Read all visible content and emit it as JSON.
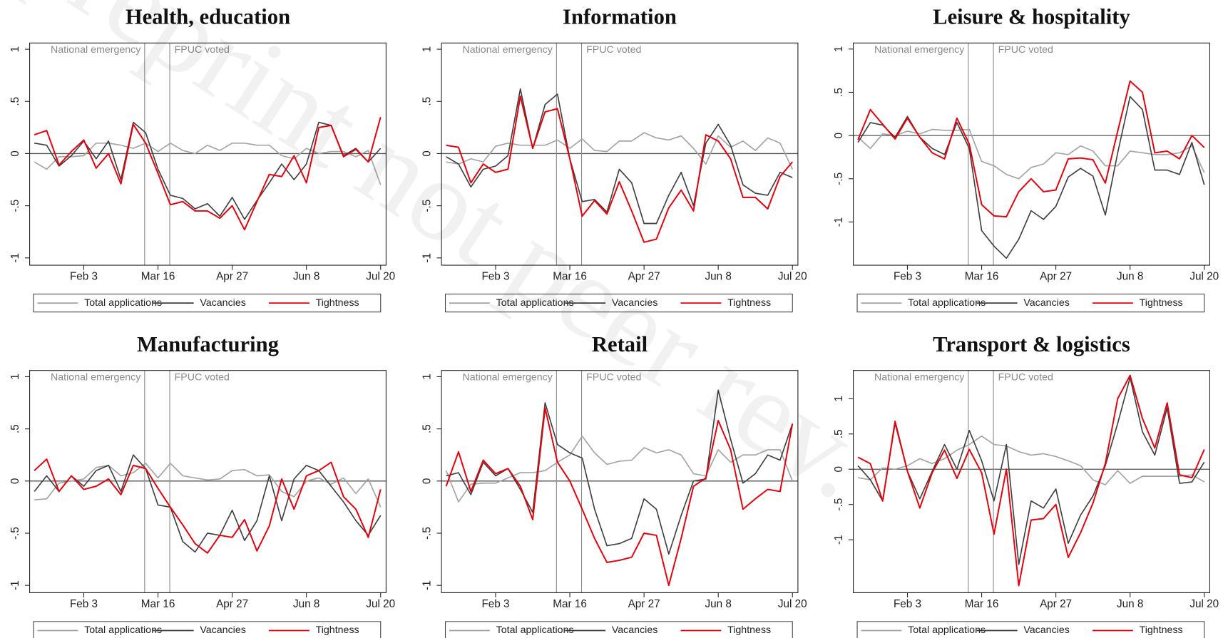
{
  "watermark": "preprint not peer rev.",
  "chart_data": [
    {
      "type": "line",
      "title": "Health, education",
      "categories": [
        null,
        null,
        null,
        null,
        "Feb 3",
        null,
        null,
        null,
        null,
        null,
        "Mar 16",
        null,
        null,
        null,
        null,
        null,
        "Apr 27",
        null,
        null,
        null,
        null,
        null,
        "Jun 8",
        null,
        null,
        null,
        null,
        null,
        "Jul 20"
      ],
      "series": [
        {
          "name": "Total applications",
          "color": "#a3a3a3",
          "values": [
            -0.08,
            -0.15,
            -0.03,
            -0.03,
            -0.02,
            0.1,
            0.1,
            0.08,
            0.05,
            0.1,
            0.02,
            0.1,
            0.03,
            0,
            0.08,
            0.03,
            0.1,
            0.1,
            0.08,
            0.08,
            -0.02,
            -0.05,
            0.05,
            0,
            0.02,
            0.02,
            -0.03,
            0.03,
            -0.3
          ]
        },
        {
          "name": "Vacancies",
          "color": "#3f3f3f",
          "values": [
            0.1,
            0.08,
            -0.12,
            -0.02,
            0.12,
            -0.05,
            0.12,
            -0.25,
            0.3,
            0.2,
            -0.15,
            -0.4,
            -0.43,
            -0.53,
            -0.48,
            -0.6,
            -0.42,
            -0.63,
            -0.45,
            -0.28,
            -0.1,
            -0.25,
            -0.1,
            0.3,
            0.27,
            -0.02,
            0.05,
            -0.08,
            0.05
          ]
        },
        {
          "name": "Tightness",
          "color": "#e8000b",
          "values": [
            0.18,
            0.22,
            -0.11,
            0.02,
            0.13,
            -0.14,
            0,
            -0.29,
            0.28,
            0.1,
            -0.19,
            -0.49,
            -0.46,
            -0.55,
            -0.55,
            -0.62,
            -0.5,
            -0.73,
            -0.46,
            -0.2,
            -0.22,
            -0.02,
            -0.28,
            0.25,
            0.27,
            -0.03,
            0.04,
            -0.08,
            0.35
          ]
        }
      ],
      "ylim": [
        -1.07,
        1.06
      ],
      "yticks": [
        -1,
        {
          "value": -0.5,
          "label": "-.5"
        },
        0,
        {
          "value": 0.5,
          "label": ".5"
        },
        1
      ],
      "hline": 0,
      "annotations": [
        {
          "label": "National emergency",
          "x": 8.92,
          "side": "left"
        },
        {
          "label": "FPUC voted",
          "x": 10.95,
          "side": "right"
        }
      ],
      "legend": "bottom"
    },
    {
      "type": "line",
      "title": "Information",
      "categories": [
        null,
        null,
        null,
        null,
        "Feb 3",
        null,
        null,
        null,
        null,
        null,
        "Mar 16",
        null,
        null,
        null,
        null,
        null,
        "Apr 27",
        null,
        null,
        null,
        null,
        null,
        "Jun 8",
        null,
        null,
        null,
        null,
        null,
        "Jul 20"
      ],
      "series": [
        {
          "name": "Total applications",
          "color": "#a3a3a3",
          "values": [
            -0.08,
            -0.1,
            -0.05,
            -0.08,
            0.07,
            0.1,
            0.08,
            0.08,
            0.08,
            0.13,
            0.05,
            0.14,
            0.03,
            0.02,
            0.12,
            0.12,
            0.2,
            0.15,
            0.13,
            0.17,
            0.05,
            -0.1,
            0.17,
            0.06,
            0.12,
            0.03,
            0.15,
            0.1,
            -0.15
          ]
        },
        {
          "name": "Vacancies",
          "color": "#3f3f3f",
          "values": [
            -0.03,
            -0.1,
            -0.32,
            -0.15,
            -0.12,
            -0.02,
            0.62,
            0.05,
            0.47,
            0.57,
            -0.05,
            -0.46,
            -0.44,
            -0.56,
            -0.15,
            -0.28,
            -0.67,
            -0.67,
            -0.4,
            -0.18,
            -0.5,
            0.1,
            0.28,
            0.08,
            -0.3,
            -0.38,
            -0.4,
            -0.18,
            -0.23
          ]
        },
        {
          "name": "Tightness",
          "color": "#e8000b",
          "values": [
            0.08,
            0.06,
            -0.28,
            -0.1,
            -0.18,
            -0.15,
            0.55,
            0.05,
            0.4,
            0.43,
            -0.05,
            -0.6,
            -0.45,
            -0.58,
            -0.27,
            -0.55,
            -0.85,
            -0.82,
            -0.52,
            -0.35,
            -0.55,
            0.18,
            0.12,
            -0.05,
            -0.42,
            -0.42,
            -0.53,
            -0.22,
            -0.08
          ]
        }
      ],
      "ylim": [
        -1.07,
        1.06
      ],
      "yticks": [
        -1,
        {
          "value": -0.5,
          "label": "-.5"
        },
        0,
        {
          "value": 0.5,
          "label": ".5"
        },
        1
      ],
      "hline": 0,
      "annotations": [
        {
          "label": "National emergency",
          "x": 8.92,
          "side": "left"
        },
        {
          "label": "FPUC voted",
          "x": 10.95,
          "side": "right"
        }
      ],
      "legend": "bottom"
    },
    {
      "type": "line",
      "title": "Leisure & hospitality",
      "categories": [
        null,
        null,
        null,
        null,
        "Feb 3",
        null,
        null,
        null,
        null,
        null,
        "Mar 16",
        null,
        null,
        null,
        null,
        null,
        "Apr 27",
        null,
        null,
        null,
        null,
        null,
        "Jun 8",
        null,
        null,
        null,
        null,
        null,
        "Jul 20"
      ],
      "series": [
        {
          "name": "Total applications",
          "color": "#a3a3a3",
          "values": [
            -0.02,
            -0.15,
            0.02,
            0,
            0.05,
            0.02,
            0.07,
            0.06,
            0.06,
            0.07,
            -0.3,
            -0.35,
            -0.45,
            -0.5,
            -0.37,
            -0.33,
            -0.2,
            -0.22,
            -0.12,
            -0.18,
            -0.35,
            -0.35,
            -0.18,
            -0.2,
            -0.22,
            -0.22,
            -0.2,
            -0.12,
            -0.43
          ]
        },
        {
          "name": "Vacancies",
          "color": "#3f3f3f",
          "values": [
            -0.08,
            0.15,
            0.12,
            -0.02,
            0.22,
            -0.02,
            -0.15,
            -0.22,
            0.15,
            -0.15,
            -1.1,
            -1.28,
            -1.42,
            -1.2,
            -0.87,
            -0.97,
            -0.82,
            -0.48,
            -0.38,
            -0.47,
            -0.92,
            -0.2,
            0.45,
            0.3,
            -0.4,
            -0.4,
            -0.45,
            -0.08,
            -0.57
          ]
        },
        {
          "name": "Tightness",
          "color": "#e8000b",
          "values": [
            -0.05,
            0.3,
            0.13,
            -0.04,
            0.2,
            -0.02,
            -0.2,
            -0.27,
            0.2,
            -0.1,
            -0.8,
            -0.93,
            -0.94,
            -0.65,
            -0.5,
            -0.65,
            -0.63,
            -0.27,
            -0.26,
            -0.28,
            -0.55,
            0.05,
            0.63,
            0.5,
            -0.2,
            -0.18,
            -0.27,
            0,
            -0.14
          ]
        }
      ],
      "ylim": [
        -1.5,
        1.07
      ],
      "yticks": [
        -1,
        {
          "value": -0.5,
          "label": "-.5"
        },
        0,
        {
          "value": 0.5,
          "label": ".5"
        },
        1
      ],
      "hline": 0,
      "annotations": [
        {
          "label": "National emergency",
          "x": 8.92,
          "side": "left"
        },
        {
          "label": "FPUC voted",
          "x": 10.95,
          "side": "right"
        }
      ],
      "legend": "bottom"
    },
    {
      "type": "line",
      "title": "Manufacturing",
      "categories": [
        null,
        null,
        null,
        null,
        "Feb 3",
        null,
        null,
        null,
        null,
        null,
        "Mar 16",
        null,
        null,
        null,
        null,
        null,
        "Apr 27",
        null,
        null,
        null,
        null,
        null,
        "Jun 8",
        null,
        null,
        null,
        null,
        null,
        "Jul 20"
      ],
      "series": [
        {
          "name": "Total applications",
          "color": "#a3a3a3",
          "values": [
            -0.18,
            -0.17,
            -0.02,
            0,
            0.02,
            0.13,
            0.15,
            0.05,
            0.08,
            0.17,
            0.03,
            0.17,
            0.05,
            0.03,
            0.01,
            0.02,
            0.1,
            0.11,
            0.05,
            0.06,
            -0.1,
            -0.15,
            0,
            0.03,
            -0.03,
            0.03,
            -0.12,
            0.02,
            -0.25
          ]
        },
        {
          "name": "Vacancies",
          "color": "#3f3f3f",
          "values": [
            -0.1,
            0.05,
            -0.1,
            0.05,
            -0.05,
            0.1,
            0.15,
            -0.1,
            0.25,
            0.12,
            -0.23,
            -0.25,
            -0.58,
            -0.68,
            -0.5,
            -0.52,
            -0.28,
            -0.57,
            -0.38,
            0.05,
            -0.38,
            0.02,
            0.15,
            0.1,
            -0.05,
            -0.2,
            -0.38,
            -0.52,
            -0.33
          ]
        },
        {
          "name": "Tightness",
          "color": "#e8000b",
          "values": [
            0.1,
            0.21,
            -0.1,
            0.05,
            -0.08,
            -0.05,
            0.02,
            -0.13,
            0.15,
            0.12,
            -0.07,
            -0.25,
            -0.42,
            -0.6,
            -0.69,
            -0.52,
            -0.54,
            -0.37,
            -0.67,
            -0.43,
            0.02,
            -0.27,
            0.05,
            0.1,
            0.18,
            -0.15,
            -0.27,
            -0.54,
            -0.08
          ]
        }
      ],
      "ylim": [
        -1.07,
        1.06
      ],
      "yticks": [
        -1,
        {
          "value": -0.5,
          "label": "-.5"
        },
        0,
        {
          "value": 0.5,
          "label": ".5"
        },
        1
      ],
      "hline": 0,
      "annotations": [
        {
          "label": "National emergency",
          "x": 8.92,
          "side": "left"
        },
        {
          "label": "FPUC voted",
          "x": 10.95,
          "side": "right"
        }
      ],
      "legend": "bottom"
    },
    {
      "type": "line",
      "title": "Retail",
      "categories": [
        null,
        null,
        null,
        null,
        "Feb 3",
        null,
        null,
        null,
        null,
        null,
        "Mar 16",
        null,
        null,
        null,
        null,
        null,
        "Apr 27",
        null,
        null,
        null,
        null,
        null,
        "Jun 8",
        null,
        null,
        null,
        null,
        null,
        "Jul 20"
      ],
      "series": [
        {
          "name": "Total applications",
          "color": "#a3a3a3",
          "values": [
            0.1,
            -0.2,
            -0.03,
            -0.02,
            -0.02,
            0.03,
            0.08,
            0.08,
            0.1,
            0.18,
            0.25,
            0.43,
            0.27,
            0.16,
            0.19,
            0.2,
            0.32,
            0.27,
            0.3,
            0.25,
            0.07,
            0.05,
            0.3,
            0.18,
            0.25,
            0.25,
            0.3,
            0.3,
            0
          ]
        },
        {
          "name": "Vacancies",
          "color": "#3f3f3f",
          "values": [
            0.05,
            0.08,
            -0.13,
            0.18,
            0.05,
            0.12,
            -0.08,
            -0.3,
            0.75,
            0.35,
            0.27,
            0.22,
            -0.27,
            -0.62,
            -0.6,
            -0.55,
            -0.17,
            -0.27,
            -0.7,
            -0.33,
            0,
            0.02,
            0.87,
            0.4,
            -0.02,
            0.07,
            0.25,
            0.2,
            0.55
          ]
        },
        {
          "name": "Tightness",
          "color": "#e8000b",
          "values": [
            -0.05,
            0.28,
            -0.1,
            0.2,
            0.07,
            0.12,
            -0.05,
            -0.37,
            0.7,
            0.18,
            0,
            -0.27,
            -0.55,
            -0.78,
            -0.76,
            -0.73,
            -0.5,
            -0.52,
            -1.0,
            -0.55,
            -0.05,
            0.03,
            0.58,
            0.3,
            -0.27,
            -0.17,
            -0.08,
            -0.1,
            0.55
          ]
        }
      ],
      "ylim": [
        -1.07,
        1.06
      ],
      "yticks": [
        -1,
        {
          "value": -0.5,
          "label": "-.5"
        },
        0,
        {
          "value": 0.5,
          "label": ".5"
        },
        1
      ],
      "hline": 0,
      "annotations": [
        {
          "label": "National emergency",
          "x": 8.92,
          "side": "left"
        },
        {
          "label": "FPUC voted",
          "x": 10.95,
          "side": "right"
        }
      ],
      "legend": "bottom"
    },
    {
      "type": "line",
      "title": "Transport & logistics",
      "categories": [
        null,
        null,
        null,
        null,
        "Feb 3",
        null,
        null,
        null,
        null,
        null,
        "Mar 16",
        null,
        null,
        null,
        null,
        null,
        "Apr 27",
        null,
        null,
        null,
        null,
        null,
        "Jun 8",
        null,
        null,
        null,
        null,
        null,
        "Jul 20"
      ],
      "series": [
        {
          "name": "Total applications",
          "color": "#a3a3a3",
          "values": [
            -0.12,
            -0.15,
            0.02,
            0,
            0.05,
            0.15,
            0.08,
            0.15,
            0.27,
            0.35,
            0.47,
            0.35,
            0.33,
            0.25,
            0.2,
            0.22,
            0.18,
            0.12,
            0.05,
            -0.15,
            -0.22,
            -0.02,
            -0.2,
            -0.1,
            -0.1,
            -0.1,
            -0.1,
            -0.08,
            -0.18
          ]
        },
        {
          "name": "Vacancies",
          "color": "#3f3f3f",
          "values": [
            0.05,
            -0.15,
            -0.45,
            0.65,
            -0.03,
            -0.42,
            -0.03,
            0.35,
            0,
            0.55,
            0.12,
            -0.45,
            0.35,
            -1.35,
            -0.45,
            -0.55,
            -0.28,
            -1.05,
            -0.65,
            -0.38,
            0.05,
            0.65,
            1.3,
            0.53,
            0.2,
            0.87,
            -0.2,
            -0.18,
            0.1
          ]
        },
        {
          "name": "Tightness",
          "color": "#e8000b",
          "values": [
            0.17,
            0.08,
            -0.45,
            0.68,
            -0.03,
            -0.55,
            -0.05,
            0.27,
            -0.13,
            0.28,
            -0.05,
            -0.92,
            0,
            -1.65,
            -0.72,
            -0.7,
            -0.5,
            -1.25,
            -0.9,
            -0.48,
            0.08,
            1.0,
            1.33,
            0.72,
            0.3,
            0.94,
            -0.08,
            -0.12,
            0.28
          ]
        }
      ],
      "ylim": [
        -1.75,
        1.4
      ],
      "yticks": [
        -1,
        {
          "value": -0.5,
          "label": "-.5"
        },
        0,
        {
          "value": 0.5,
          "label": ".5"
        },
        1
      ],
      "hline": 0,
      "annotations": [
        {
          "label": "National emergency",
          "x": 8.92,
          "side": "left"
        },
        {
          "label": "FPUC voted",
          "x": 10.95,
          "side": "right"
        }
      ],
      "legend": "bottom"
    }
  ]
}
